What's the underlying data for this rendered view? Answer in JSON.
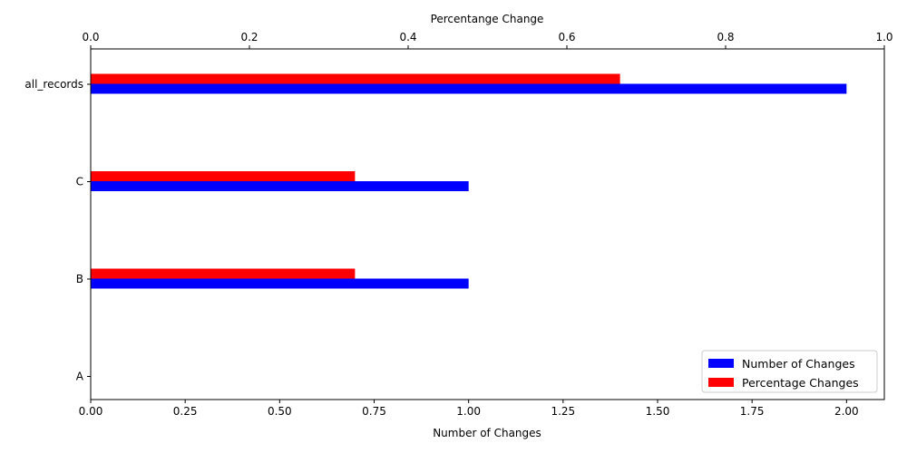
{
  "chart_data": {
    "type": "bar",
    "orientation": "horizontal",
    "categories": [
      "A",
      "B",
      "C",
      "all_records"
    ],
    "series": [
      {
        "name": "Number of Changes",
        "color": "#0000ff",
        "axis": "bottom",
        "values": [
          0,
          1,
          1,
          2
        ]
      },
      {
        "name": "Percentage Changes",
        "color": "#ff0000",
        "axis": "top",
        "values": [
          0,
          0.333,
          0.333,
          0.667
        ]
      }
    ],
    "x_bottom": {
      "label": "Number of Changes",
      "range": [
        0,
        2.1
      ],
      "ticks": [
        0,
        0.25,
        0.5,
        0.75,
        1.0,
        1.25,
        1.5,
        1.75,
        2.0
      ],
      "tick_labels": [
        "0.00",
        "0.25",
        "0.50",
        "0.75",
        "1.00",
        "1.25",
        "1.50",
        "1.75",
        "2.00"
      ]
    },
    "x_top": {
      "label": "Percentange Change",
      "range": [
        0,
        1.0
      ],
      "ticks": [
        0,
        0.2,
        0.4,
        0.6,
        0.8,
        1.0
      ],
      "tick_labels": [
        "0.0",
        "0.2",
        "0.4",
        "0.6",
        "0.8",
        "1.0"
      ]
    },
    "legend_position": "bottom-right",
    "grid": false
  }
}
